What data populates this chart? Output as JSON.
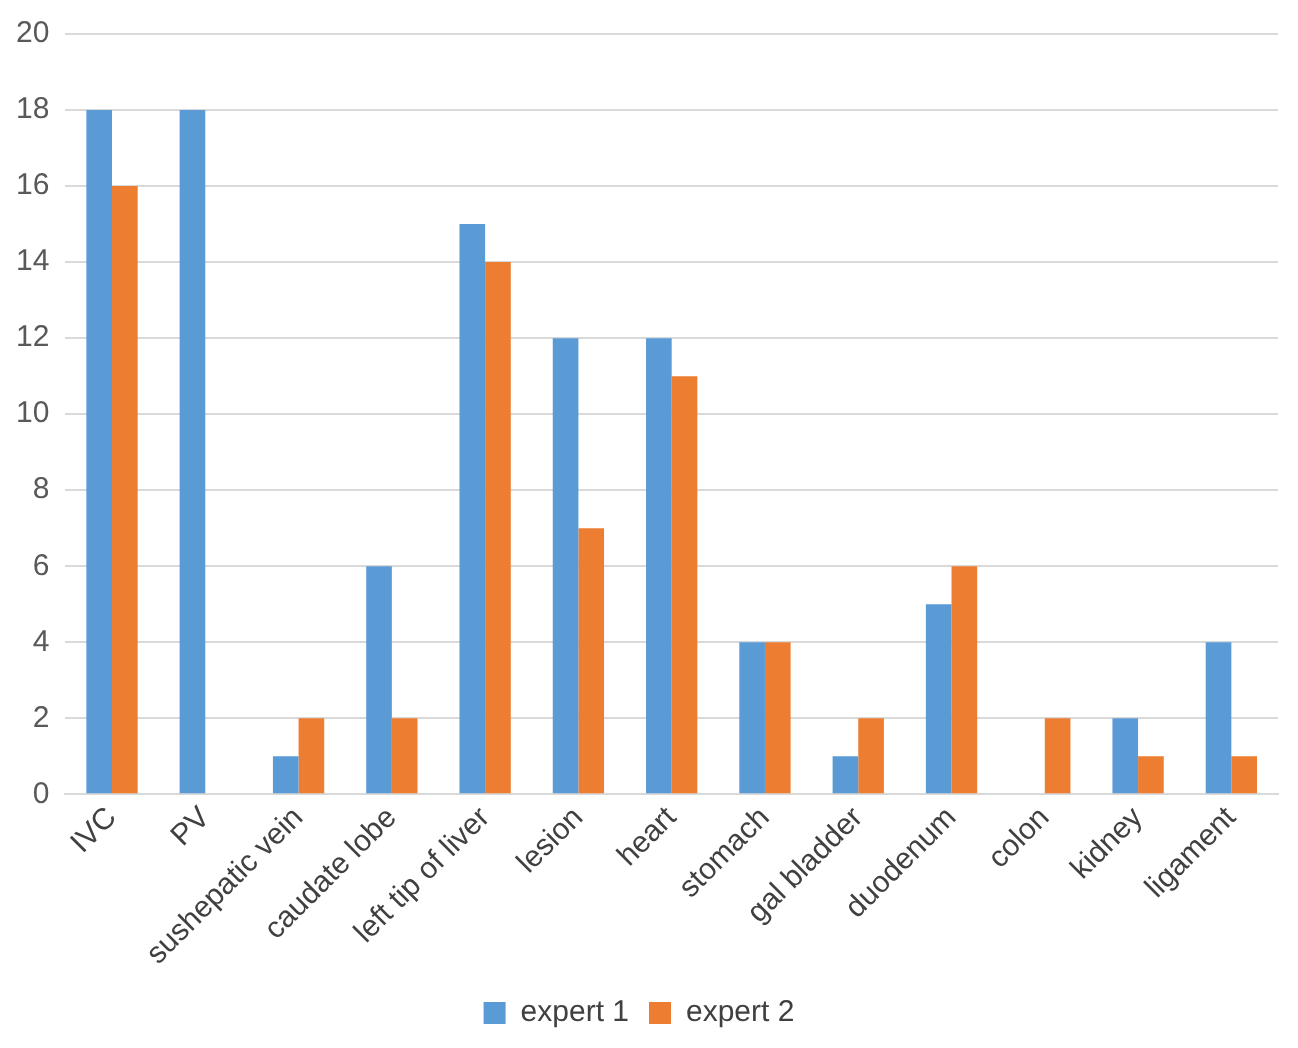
{
  "chart_data": {
    "type": "bar",
    "categories": [
      "IVC",
      "PV",
      "sushepatic vein",
      "caudate lobe",
      "left tip of liver",
      "lesion",
      "heart",
      "stomach",
      "gal bladder",
      "duodenum",
      "colon",
      "kidney",
      "ligament"
    ],
    "series": [
      {
        "name": "expert 1",
        "color": "#5b9bd5",
        "values": [
          18,
          18,
          1,
          6,
          15,
          12,
          12,
          4,
          1,
          5,
          0,
          2,
          4
        ]
      },
      {
        "name": "expert 2",
        "color": "#ed7d31",
        "values": [
          16,
          0,
          2,
          2,
          14,
          7,
          11,
          4,
          2,
          6,
          2,
          1,
          1
        ]
      }
    ],
    "ylim": [
      0,
      20
    ],
    "yticks": [
      0,
      2,
      4,
      6,
      8,
      10,
      12,
      14,
      16,
      18,
      20
    ],
    "grid": "y",
    "legend": "bottom"
  }
}
